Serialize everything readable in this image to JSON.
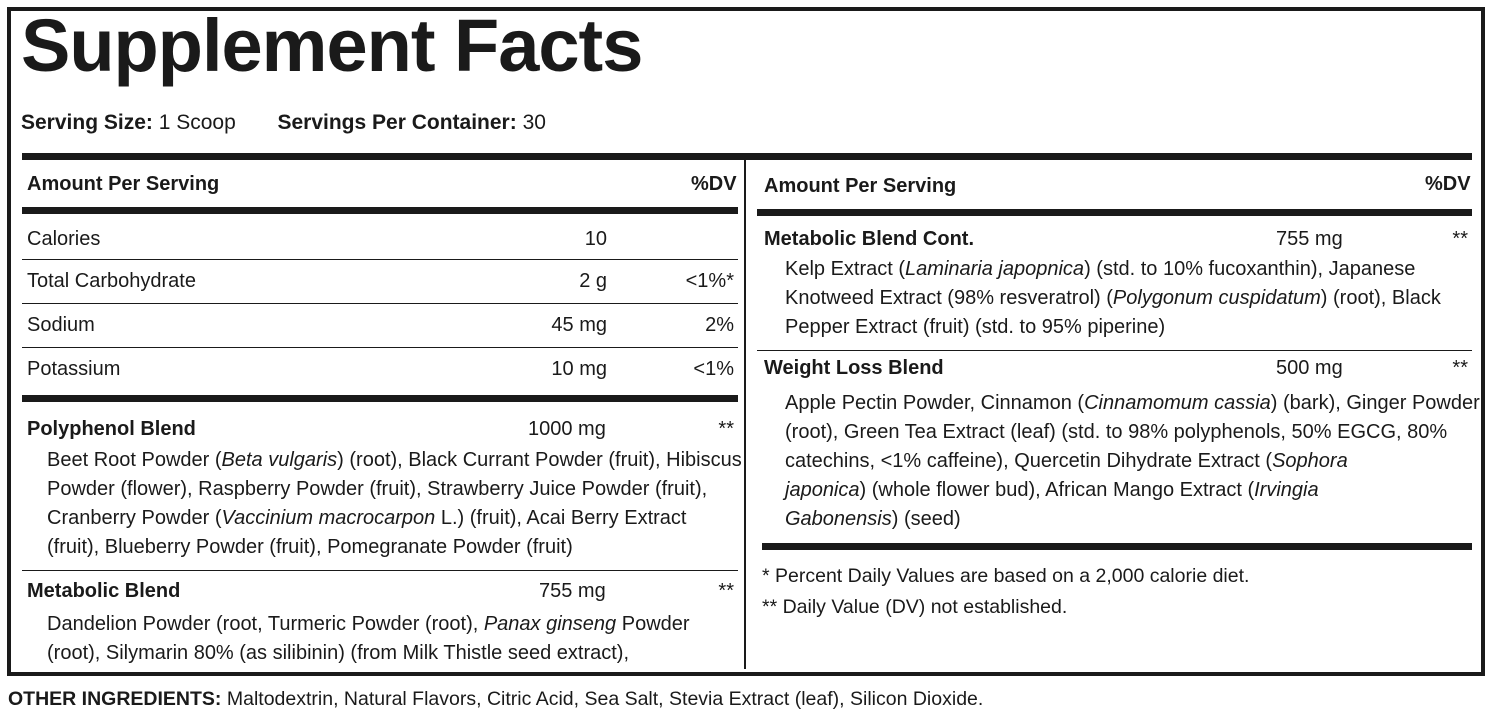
{
  "title": "Supplement Facts",
  "serving": {
    "size_label": "Serving Size:",
    "size_value": "1 Scoop",
    "per_container_label": "Servings Per Container:",
    "per_container_value": "30"
  },
  "headers": {
    "amount": "Amount Per Serving",
    "dv": "%DV"
  },
  "nutrients": [
    {
      "name": "Calories",
      "amount": "10",
      "dv": ""
    },
    {
      "name": "Total Carbohydrate",
      "amount": "2 g",
      "dv": "<1%*"
    },
    {
      "name": "Sodium",
      "amount": "45 mg",
      "dv": "2%"
    },
    {
      "name": "Potassium",
      "amount": "10 mg",
      "dv": "<1%"
    }
  ],
  "blends": {
    "polyphenol": {
      "name": "Polyphenol Blend",
      "amount": "1000 mg",
      "dv": "**",
      "lines": [
        [
          "Beet Root Powder (",
          {
            "i": "Beta vulgaris"
          },
          ") (root), Black Currant Powder (fruit), Hibiscus"
        ],
        [
          "Powder (flower), Raspberry Powder (fruit), Strawberry Juice Powder (fruit),"
        ],
        [
          "Cranberry Powder (",
          {
            "i": "Vaccinium macrocarpon"
          },
          " L.) (fruit), Acai Berry Extract"
        ],
        [
          "(fruit), Blueberry Powder (fruit), Pomegranate Powder (fruit)"
        ]
      ]
    },
    "metabolic": {
      "name": "Metabolic Blend",
      "amount": "755 mg",
      "dv": "**",
      "lines": [
        [
          "Dandelion Powder (root, Turmeric Powder (root), ",
          {
            "i": "Panax ginseng"
          },
          " Powder"
        ],
        [
          "(root), Silymarin 80% (as silibinin) (from Milk Thistle seed extract),"
        ]
      ]
    },
    "metabolic_cont": {
      "name": "Metabolic Blend Cont.",
      "amount": "755 mg",
      "dv": "**",
      "lines": [
        [
          "Kelp Extract (",
          {
            "i": "Laminaria japopnica"
          },
          ") (std. to 10% fucoxanthin), Japanese"
        ],
        [
          "Knotweed Extract (98% resveratrol) (",
          {
            "i": "Polygonum cuspidatum"
          },
          ") (root), Black"
        ],
        [
          "Pepper Extract (fruit)  (std. to 95% piperine)"
        ]
      ]
    },
    "weight_loss": {
      "name": "Weight Loss Blend",
      "amount": "500 mg",
      "dv": "**",
      "lines": [
        [
          "Apple Pectin Powder, Cinnamon (",
          {
            "i": "Cinnamomum cassia"
          },
          ") (bark), Ginger Powder"
        ],
        [
          "(root), Green Tea Extract (leaf) (std. to 98% polyphenols, 50% EGCG, 80%"
        ],
        [
          "catechins, <1% caffeine), Quercetin Dihydrate Extract (",
          {
            "i": "Sophora"
          }
        ],
        [
          {
            "i": "japonica"
          },
          ") (whole flower bud), African Mango Extract (",
          {
            "i": "Irvingia"
          }
        ],
        [
          {
            "i": "Gabonensis"
          },
          ") (seed)"
        ]
      ]
    }
  },
  "footnotes": {
    "percent_dv": "* Percent Daily Values are based on a 2,000 calorie diet.",
    "dv_not_established": "** Daily Value (DV) not established."
  },
  "other_ingredients": {
    "label": "OTHER INGREDIENTS:",
    "text": " Maltodextrin, Natural Flavors, Citric Acid, Sea Salt, Stevia Extract (leaf), Silicon Dioxide."
  }
}
